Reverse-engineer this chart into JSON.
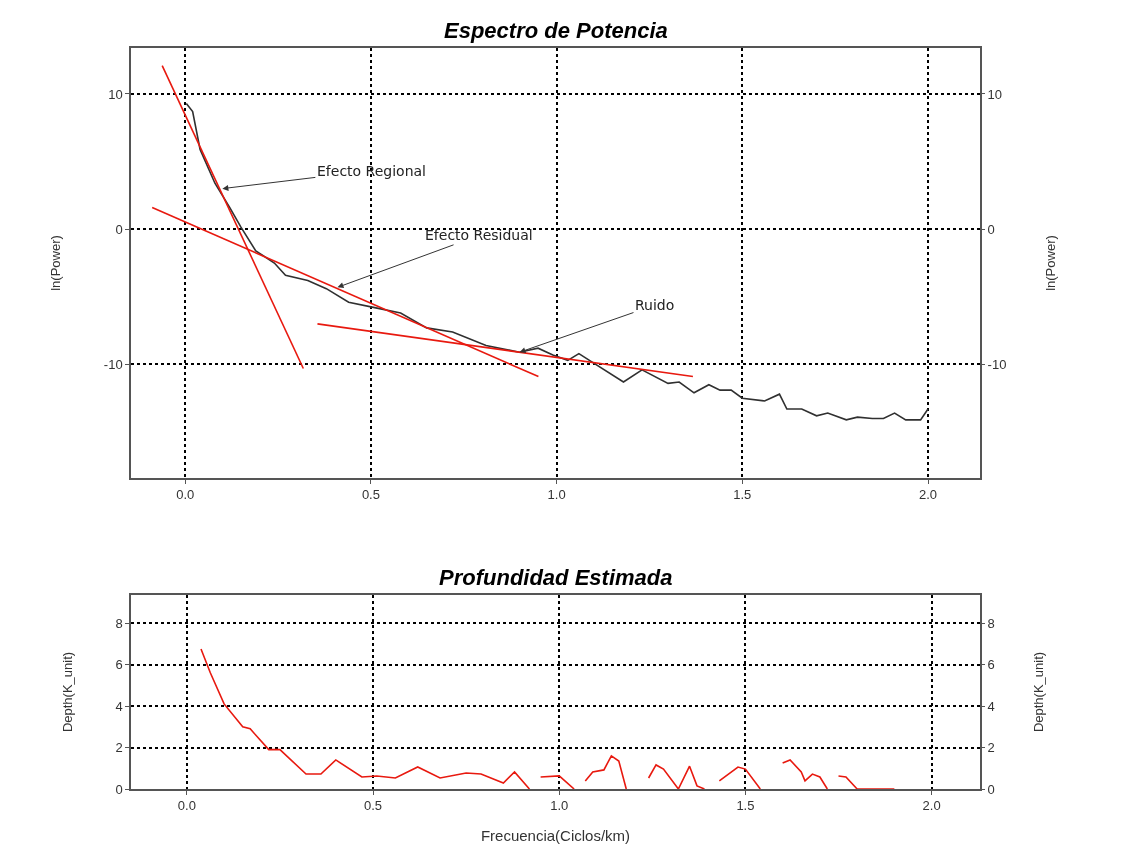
{
  "chart_data": [
    {
      "type": "line",
      "title": "Espectro de Potencia",
      "ylabel": "ln(Power)",
      "y2label": "ln(Power)",
      "xlim": [
        -0.146,
        2.14
      ],
      "xticks": [
        {
          "value": 0,
          "label": "0.0"
        },
        {
          "value": 0.5,
          "label": "0.5"
        },
        {
          "value": 1,
          "label": "1.0"
        },
        {
          "value": 1.5,
          "label": "1.5"
        },
        {
          "value": 2,
          "label": "2.0"
        }
      ],
      "ylim": [
        -18.4,
        13.4
      ],
      "yticks": [
        -10,
        0,
        10
      ],
      "y2lim": [
        -18.4,
        13.4
      ],
      "y2ticks": [
        -10,
        0,
        10
      ],
      "grid": true,
      "series": [
        {
          "color": "#303030",
          "x": [
            0.003,
            0.02,
            0.04,
            0.08,
            0.12,
            0.15,
            0.19,
            0.24,
            0.27,
            0.33,
            0.38,
            0.44,
            0.51,
            0.58,
            0.65,
            0.72,
            0.81,
            0.9,
            0.95,
            0.99,
            1.03,
            1.06,
            1.1,
            1.18,
            1.23,
            1.3,
            1.33,
            1.37,
            1.41,
            1.44,
            1.47,
            1.5,
            1.56,
            1.6,
            1.62,
            1.66,
            1.7,
            1.73,
            1.78,
            1.81,
            1.85,
            1.88,
            1.91,
            1.94,
            1.98,
            2.0
          ],
          "values": [
            9.3,
            8.7,
            5.9,
            3.4,
            1.6,
            0.15,
            -1.6,
            -2.5,
            -3.4,
            -3.8,
            -4.4,
            -5.4,
            -5.8,
            -6.2,
            -7.3,
            -7.6,
            -8.6,
            -9.1,
            -8.8,
            -9.3,
            -9.7,
            -9.2,
            -9.9,
            -11.3,
            -10.4,
            -11.4,
            -11.3,
            -12.1,
            -11.5,
            -11.9,
            -11.9,
            -12.5,
            -12.7,
            -12.2,
            -13.3,
            -13.3,
            -13.8,
            -13.6,
            -14.1,
            -13.9,
            -14.0,
            -14.0,
            -13.6,
            -14.1,
            -14.1,
            -13.3
          ]
        },
        {
          "color": "#e8190f",
          "x": [
            -0.062,
            0.318
          ],
          "values": [
            12.1,
            -10.3
          ]
        },
        {
          "color": "#e8190f",
          "x": [
            -0.089,
            0.951
          ],
          "values": [
            1.6,
            -10.9
          ]
        },
        {
          "color": "#e8190f",
          "x": [
            0.356,
            1.367
          ],
          "values": [
            -7.0,
            -10.9
          ]
        }
      ],
      "annotations": [
        {
          "text": "Efecto Regional",
          "x": 0.1,
          "y": 3.0
        },
        {
          "text": "Efecto Residual",
          "x": 0.41,
          "y": -4.3
        },
        {
          "text": "Ruido",
          "x": 0.9,
          "y": -9.1
        }
      ]
    },
    {
      "type": "line",
      "title": "Profundidad Estimada",
      "xlabel": "Frecuencia(Ciclos/km)",
      "ylabel": "Depth(K_unit)",
      "y2label": "Depth(K_unit)",
      "xlim": [
        -0.15,
        2.13
      ],
      "xticks": [
        {
          "value": 0,
          "label": "0.0"
        },
        {
          "value": 0.5,
          "label": "0.5"
        },
        {
          "value": 1,
          "label": "1.0"
        },
        {
          "value": 1.5,
          "label": "1.5"
        },
        {
          "value": 2,
          "label": "2.0"
        }
      ],
      "ylim": [
        0,
        9.35
      ],
      "yticks": [
        0,
        2,
        4,
        6,
        8
      ],
      "y2lim": [
        0,
        9.35
      ],
      "y2ticks": [
        0,
        2,
        4,
        6,
        8
      ],
      "grid": true,
      "series": [
        {
          "color": "#e8190f",
          "x": [
            0.038,
            0.063,
            0.1,
            0.15,
            0.17,
            0.22,
            0.25,
            0.32,
            0.36,
            0.4,
            0.47,
            0.51,
            0.56,
            0.62,
            0.68,
            0.75,
            0.79,
            0.85,
            0.88,
            0.92,
            0.935,
            0.95,
            1.0,
            1.04,
            1.055,
            1.07,
            1.09,
            1.12,
            1.14,
            1.16,
            1.18,
            1.21,
            1.24,
            1.26,
            1.28,
            1.32,
            1.35,
            1.37,
            1.39,
            1.41,
            1.43,
            1.48,
            1.5,
            1.54,
            1.57,
            1.6,
            1.62,
            1.65,
            1.66,
            1.68,
            1.7,
            1.72,
            1.735,
            1.75,
            1.77,
            1.8,
            1.9
          ],
          "values": [
            6.75,
            5.6,
            4.1,
            3.0,
            2.9,
            1.9,
            1.9,
            0.72,
            0.72,
            1.4,
            0.58,
            0.63,
            0.53,
            1.06,
            0.53,
            0.77,
            0.72,
            0.29,
            0.82,
            0,
            null,
            0.58,
            0.63,
            0,
            null,
            0.39,
            0.82,
            0.92,
            1.6,
            1.35,
            0,
            null,
            0.53,
            1.16,
            0.96,
            0,
            1.1,
            0.15,
            0,
            null,
            0.39,
            1.06,
            0.96,
            0,
            null,
            1.25,
            1.4,
            0.82,
            0.39,
            0.72,
            0.58,
            0,
            null,
            0.63,
            0.58,
            0,
            0
          ]
        }
      ]
    }
  ]
}
